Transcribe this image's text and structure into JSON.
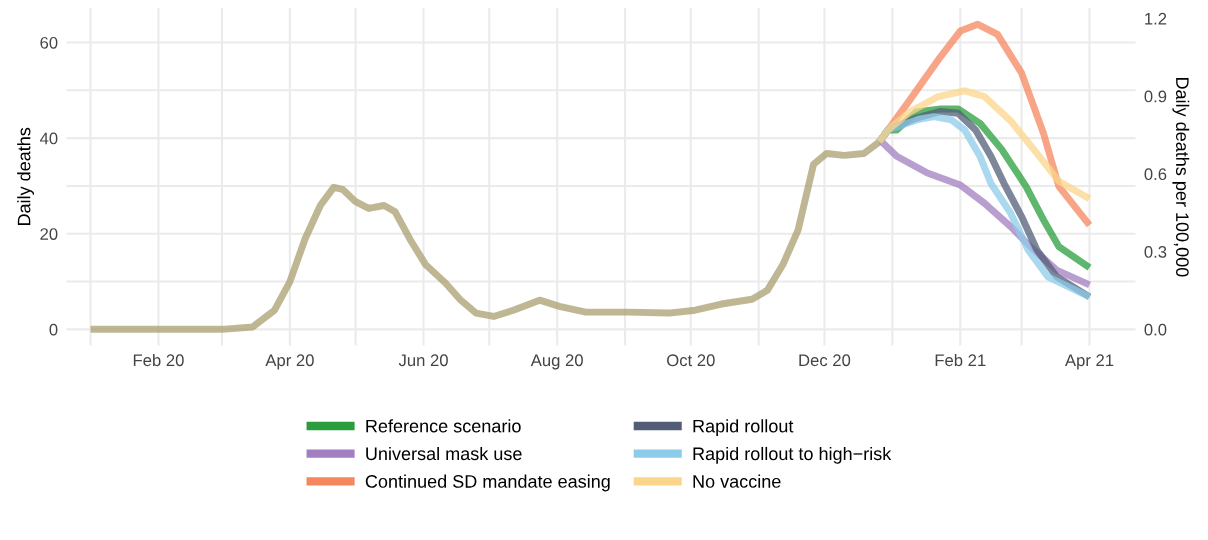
{
  "chart_data": {
    "type": "line",
    "ylabel": "Daily deaths",
    "y2label": "Daily deaths per 100,000",
    "xlim": [
      "2019-12-21",
      "2021-04-22"
    ],
    "xticks": [
      {
        "value": "2020-01-01",
        "label": null
      },
      {
        "value": "2020-02-01",
        "label": "Feb 20"
      },
      {
        "value": "2020-03-01",
        "label": null
      },
      {
        "value": "2020-04-01",
        "label": "Apr 20"
      },
      {
        "value": "2020-05-01",
        "label": null
      },
      {
        "value": "2020-06-01",
        "label": "Jun 20"
      },
      {
        "value": "2020-07-01",
        "label": null
      },
      {
        "value": "2020-08-01",
        "label": "Aug 20"
      },
      {
        "value": "2020-09-01",
        "label": null
      },
      {
        "value": "2020-10-01",
        "label": "Oct 20"
      },
      {
        "value": "2020-11-01",
        "label": null
      },
      {
        "value": "2020-12-01",
        "label": "Dec 20"
      },
      {
        "value": "2021-01-01",
        "label": null
      },
      {
        "value": "2021-02-01",
        "label": "Feb 21"
      },
      {
        "value": "2021-03-01",
        "label": null
      },
      {
        "value": "2021-04-01",
        "label": "Apr 21"
      }
    ],
    "ylim": [
      -3.4,
      67.2
    ],
    "yticks": [
      0,
      {
        "value": 10,
        "label": null
      },
      20,
      {
        "value": 30,
        "label": null
      },
      40,
      {
        "value": 50,
        "label": null
      },
      60
    ],
    "y2lim": [
      -0.0627,
      1.2399
    ],
    "y2ticks": [
      {
        "value": 0,
        "label": "0.0"
      },
      {
        "value": 0.3,
        "label": "0.3"
      },
      {
        "value": 0.6,
        "label": "0.6"
      },
      {
        "value": 0.9,
        "label": "0.9"
      },
      {
        "value": 1.2,
        "label": "1.2"
      }
    ],
    "grid": true,
    "legend": "bottom",
    "line_style": "solid",
    "marker": "none",
    "series": [
      {
        "color": "#a99f70",
        "x": [
          "2020-01-01",
          "2020-03-01",
          "2020-03-15",
          "2020-03-25",
          "2020-04-01",
          "2020-04-08",
          "2020-04-15",
          "2020-04-21",
          "2020-04-25",
          "2020-05-01",
          "2020-05-07",
          "2020-05-14",
          "2020-05-19",
          "2020-05-26",
          "2020-06-02",
          "2020-06-11",
          "2020-06-18",
          "2020-06-25",
          "2020-07-03",
          "2020-07-12",
          "2020-07-24",
          "2020-08-02",
          "2020-08-14",
          "2020-09-02",
          "2020-09-21",
          "2020-10-03",
          "2020-10-15",
          "2020-10-29",
          "2020-11-05",
          "2020-11-12",
          "2020-11-19",
          "2020-11-26",
          "2020-12-02",
          "2020-12-10",
          "2020-12-19",
          "2020-12-26"
        ],
        "values": [
          0,
          0,
          0.5,
          4,
          10,
          19,
          26,
          29.7,
          29.3,
          26.7,
          25.3,
          25.9,
          24.6,
          18.7,
          13.5,
          9.7,
          6.1,
          3.4,
          2.7,
          4,
          6.1,
          4.8,
          3.6,
          3.6,
          3.4,
          4,
          5.3,
          6.3,
          8.2,
          13.5,
          20.8,
          34.5,
          36.8,
          36.4,
          36.8,
          39.2
        ]
      },
      {
        "name": "Reference scenario",
        "color": "#2a9d3c",
        "x": [
          "2020-12-26",
          "2020-12-30",
          "2021-01-03",
          "2021-01-12",
          "2021-01-23",
          "2021-01-31",
          "2021-02-10",
          "2021-02-20",
          "2021-03-03",
          "2021-03-11",
          "2021-03-18",
          "2021-04-01"
        ],
        "values": [
          39.2,
          41.7,
          41.7,
          45.5,
          46.1,
          46.1,
          43.1,
          37.6,
          29.9,
          22.9,
          17.3,
          12.9
        ]
      },
      {
        "name": "Universal mask use",
        "color": "#a17fc0",
        "x": [
          "2020-12-26",
          "2020-12-27",
          "2021-01-03",
          "2021-01-17",
          "2021-02-01",
          "2021-02-12",
          "2021-02-24",
          "2021-03-05",
          "2021-03-17",
          "2021-04-01"
        ],
        "values": [
          39.2,
          39.3,
          36.2,
          32.7,
          30.2,
          26.4,
          21.5,
          17.3,
          12.4,
          9.3
        ]
      },
      {
        "name": "Continued SD mandate easing",
        "color": "#f4875d",
        "x": [
          "2020-12-26",
          "2020-12-30",
          "2021-01-09",
          "2021-01-22",
          "2021-02-01",
          "2021-02-09",
          "2021-02-18",
          "2021-03-01",
          "2021-03-11",
          "2021-03-18",
          "2021-04-01"
        ],
        "values": [
          39.2,
          41.7,
          48,
          56.4,
          62.4,
          63.8,
          61.7,
          53.6,
          41,
          29.9,
          21.8
        ]
      },
      {
        "name": "Rapid rollout",
        "color": "#535d78",
        "x": [
          "2020-12-26",
          "2020-12-30",
          "2021-01-12",
          "2021-01-23",
          "2021-01-31",
          "2021-02-08",
          "2021-02-15",
          "2021-02-21",
          "2021-03-01",
          "2021-03-08",
          "2021-03-17",
          "2021-04-01"
        ],
        "values": [
          39.2,
          41.7,
          44.2,
          45.6,
          45.2,
          41.7,
          36.2,
          30.5,
          23.6,
          16.6,
          11,
          6.8
        ]
      },
      {
        "name": "Rapid rollout to high−risk",
        "color": "#8ccbea",
        "x": [
          "2020-12-26",
          "2020-12-30",
          "2021-01-12",
          "2021-01-20",
          "2021-01-28",
          "2021-02-03",
          "2021-02-10",
          "2021-02-15",
          "2021-02-24",
          "2021-03-04",
          "2021-03-13",
          "2021-04-01"
        ],
        "values": [
          39.2,
          41.7,
          43.8,
          44.5,
          43.8,
          41.7,
          36.2,
          30.5,
          24.3,
          16.6,
          11,
          6.8
        ]
      },
      {
        "name": "No vaccine",
        "color": "#fbd68a",
        "x": [
          "2020-12-26",
          "2020-12-30",
          "2021-01-09",
          "2021-01-22",
          "2021-02-03",
          "2021-02-12",
          "2021-02-24",
          "2021-03-08",
          "2021-03-18",
          "2021-04-01"
        ],
        "values": [
          39.2,
          41.7,
          45.5,
          48.7,
          49.9,
          48.7,
          43.6,
          36.8,
          31,
          27.3
        ]
      }
    ]
  }
}
